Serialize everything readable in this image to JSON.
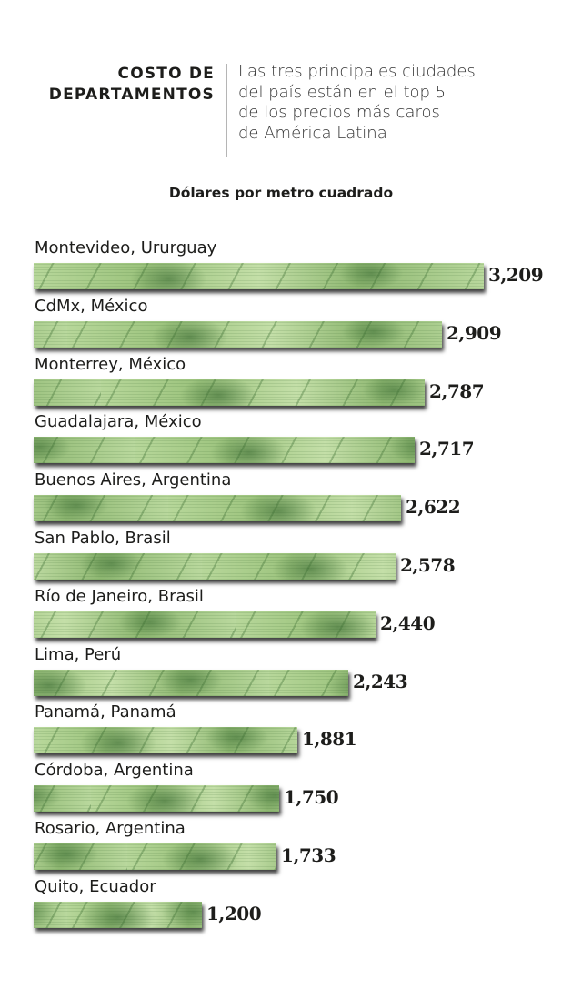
{
  "header": {
    "title_line1": "COSTO DE",
    "title_line2": "DEPARTAMENTOS",
    "subtitle_lines": [
      "Las tres principales ciudades",
      "del país están en el top 5",
      "de los precios más caros",
      "de América Latina"
    ]
  },
  "unit_label": "Dólares por metro cuadrado",
  "colors": {
    "bar_base": "#b7d79a",
    "bar_dark": "#5e8f4a",
    "text": "#1d1d1b",
    "divider": "#b5b5b5"
  },
  "rows": [
    {
      "label": "Montevideo, Ururguay",
      "value": "3,209"
    },
    {
      "label": "CdMx, México",
      "value": "2,909"
    },
    {
      "label": "Monterrey, México",
      "value": "2,787"
    },
    {
      "label": "Guadalajara, México",
      "value": "2,717"
    },
    {
      "label": "Buenos Aires, Argentina",
      "value": "2,622"
    },
    {
      "label": "San Pablo, Brasil",
      "value": "2,578"
    },
    {
      "label": "Río de Janeiro, Brasil",
      "value": "2,440"
    },
    {
      "label": "Lima, Perú",
      "value": "2,243"
    },
    {
      "label": "Panamá, Panamá",
      "value": "1,881"
    },
    {
      "label": "Córdoba, Argentina",
      "value": "1,750"
    },
    {
      "label": "Rosario, Argentina",
      "value": "1,733"
    },
    {
      "label": "Quito, Ecuador",
      "value": "1,200"
    }
  ],
  "chart_data": {
    "type": "bar",
    "orientation": "horizontal",
    "title": "COSTO DE DEPARTAMENTOS",
    "subtitle": "Las tres principales ciudades del país están en el top 5 de los precios más caros de América Latina",
    "xlabel": "Dólares por metro cuadrado",
    "ylabel": "",
    "categories": [
      "Montevideo, Ururguay",
      "CdMx, México",
      "Monterrey, México",
      "Guadalajara, México",
      "Buenos Aires, Argentina",
      "San Pablo, Brasil",
      "Río de Janeiro, Brasil",
      "Lima, Perú",
      "Panamá, Panamá",
      "Córdoba, Argentina",
      "Rosario, Argentina",
      "Quito, Ecuador"
    ],
    "values": [
      3209,
      2909,
      2787,
      2717,
      2622,
      2578,
      2440,
      2243,
      1881,
      1750,
      1733,
      1200
    ],
    "grid": false,
    "legend": "none",
    "data_labels": true
  }
}
